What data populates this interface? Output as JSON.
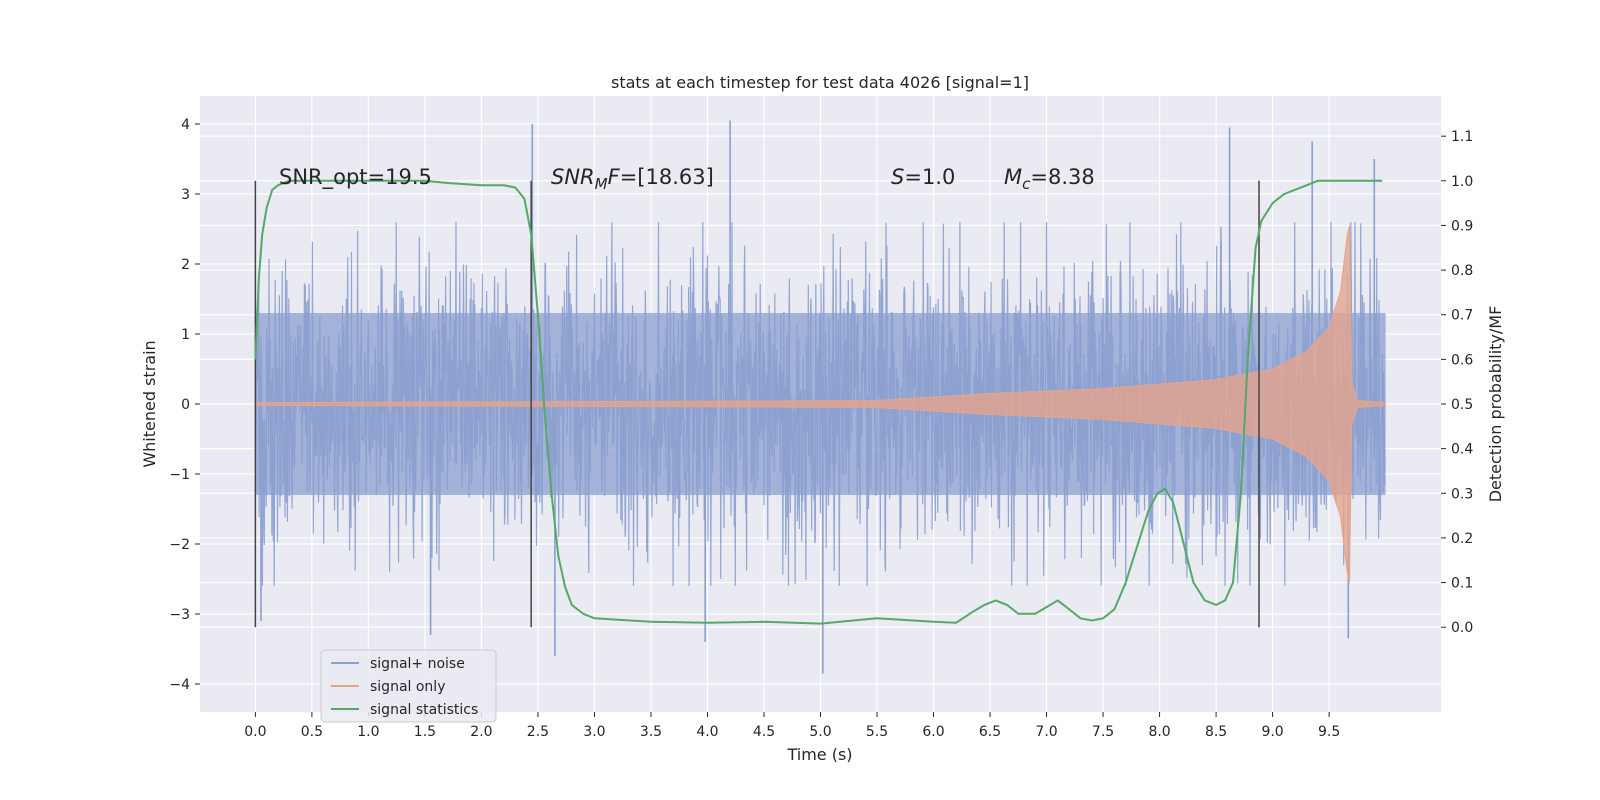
{
  "chart_data": {
    "type": "line",
    "title": "stats at each timestep for test data 4026 [signal=1]",
    "xlabel": "Time (s)",
    "ylabel": "Whitened strain",
    "y2label": "Detection probability/MF",
    "xlim": [
      -0.49,
      10.49
    ],
    "ylim": [
      -4.4,
      4.4
    ],
    "y2lim": [
      -0.19,
      1.19
    ],
    "x_ticks": [
      0.0,
      0.5,
      1.0,
      1.5,
      2.0,
      2.5,
      3.0,
      3.5,
      4.0,
      4.5,
      5.0,
      5.5,
      6.0,
      6.5,
      7.0,
      7.5,
      8.0,
      8.5,
      9.0,
      9.5
    ],
    "x_tick_labels": [
      "0.0",
      "0.5",
      "1.0",
      "1.5",
      "2.0",
      "2.5",
      "3.0",
      "3.5",
      "4.0",
      "4.5",
      "5.0",
      "5.5",
      "6.0",
      "6.5",
      "7.0",
      "7.5",
      "8.0",
      "8.5",
      "9.0",
      "9.5"
    ],
    "y_ticks": [
      4,
      3,
      2,
      1,
      0,
      -1,
      -2,
      -3,
      -4
    ],
    "y_tick_labels": [
      "4",
      "3",
      "2",
      "1",
      "0",
      "−1",
      "−2",
      "−3",
      "−4"
    ],
    "y2_ticks": [
      1.1,
      1.0,
      0.9,
      0.8,
      0.7,
      0.6,
      0.5,
      0.4,
      0.3,
      0.2,
      0.1,
      0.0
    ],
    "y2_tick_labels": [
      "1.1",
      "1.0",
      "0.9",
      "0.8",
      "0.7",
      "0.6",
      "0.5",
      "0.4",
      "0.3",
      "0.2",
      "0.1",
      "0.0"
    ],
    "grid": true,
    "legend_position": "lower-left",
    "legend": [
      {
        "label": "signal+ noise",
        "color": "#8a9fcf"
      },
      {
        "label": "signal only",
        "color": "#e5a48c"
      },
      {
        "label": "signal statistics",
        "color": "#55a868"
      }
    ],
    "annotations": {
      "snr_opt": "SNR_opt=19.5",
      "snr_mf_prefix": "SNR",
      "snr_mf_sub": "M",
      "snr_mf_italic": "F",
      "snr_mf_value": "=[18.63]",
      "s_label": "S",
      "s_value": "=1.0",
      "mc_label": "M",
      "mc_sub": "c",
      "mc_value": "=8.38"
    },
    "vertical_markers_x": [
      0.0,
      2.44,
      8.88
    ],
    "marker_y2_range": [
      0.0,
      1.0
    ],
    "series": [
      {
        "name": "signal+ noise",
        "axis": "left",
        "x_range": [
          0.0,
          10.0
        ],
        "core_amplitude": 1.3,
        "typical_extent": [
          -2.6,
          2.6
        ],
        "peaks": [
          [
            0.05,
            -3.1
          ],
          [
            1.55,
            -3.3
          ],
          [
            2.45,
            4.0
          ],
          [
            2.65,
            -3.6
          ],
          [
            3.98,
            -3.4
          ],
          [
            4.2,
            4.05
          ],
          [
            5.02,
            -3.85
          ],
          [
            8.62,
            3.95
          ],
          [
            9.35,
            3.75
          ],
          [
            9.67,
            -3.35
          ],
          [
            9.9,
            3.5
          ]
        ]
      },
      {
        "name": "signal only",
        "axis": "left",
        "x_range": [
          0.0,
          10.0
        ],
        "envelope": [
          [
            0.0,
            0.02
          ],
          [
            2.0,
            0.03
          ],
          [
            4.0,
            0.04
          ],
          [
            5.5,
            0.05
          ],
          [
            6.5,
            0.15
          ],
          [
            7.5,
            0.22
          ],
          [
            8.5,
            0.35
          ],
          [
            9.0,
            0.5
          ],
          [
            9.3,
            0.75
          ],
          [
            9.5,
            1.1
          ],
          [
            9.6,
            1.6
          ],
          [
            9.66,
            2.4
          ],
          [
            9.68,
            2.55
          ],
          [
            9.7,
            0.3
          ],
          [
            9.75,
            0.05
          ],
          [
            10.0,
            0.02
          ]
        ]
      },
      {
        "name": "signal statistics",
        "axis": "right",
        "x": [
          0.0,
          0.03,
          0.06,
          0.1,
          0.15,
          0.2,
          0.3,
          0.5,
          1.0,
          1.5,
          1.7,
          2.0,
          2.2,
          2.3,
          2.38,
          2.44,
          2.5,
          2.56,
          2.62,
          2.68,
          2.74,
          2.8,
          2.9,
          3.0,
          3.5,
          4.0,
          4.5,
          5.0,
          5.5,
          6.0,
          6.2,
          6.35,
          6.45,
          6.55,
          6.65,
          6.75,
          6.9,
          7.0,
          7.1,
          7.2,
          7.3,
          7.4,
          7.5,
          7.6,
          7.7,
          7.8,
          7.9,
          7.98,
          8.05,
          8.12,
          8.2,
          8.3,
          8.4,
          8.5,
          8.58,
          8.65,
          8.72,
          8.78,
          8.85,
          8.9,
          9.0,
          9.1,
          9.2,
          9.3,
          9.4,
          9.5,
          9.6,
          9.7,
          9.8,
          9.9,
          9.97
        ],
        "values": [
          0.6,
          0.78,
          0.88,
          0.94,
          0.98,
          0.99,
          1.0,
          1.0,
          1.0,
          1.0,
          0.995,
          0.99,
          0.99,
          0.985,
          0.96,
          0.88,
          0.7,
          0.48,
          0.3,
          0.16,
          0.09,
          0.05,
          0.03,
          0.02,
          0.012,
          0.01,
          0.012,
          0.008,
          0.02,
          0.012,
          0.01,
          0.035,
          0.05,
          0.06,
          0.05,
          0.03,
          0.03,
          0.045,
          0.06,
          0.04,
          0.02,
          0.015,
          0.02,
          0.04,
          0.1,
          0.18,
          0.26,
          0.3,
          0.31,
          0.28,
          0.2,
          0.1,
          0.06,
          0.05,
          0.06,
          0.1,
          0.3,
          0.6,
          0.85,
          0.91,
          0.95,
          0.97,
          0.98,
          0.99,
          1.0,
          1.0,
          1.0,
          1.0,
          1.0,
          1.0,
          1.0
        ]
      }
    ]
  }
}
